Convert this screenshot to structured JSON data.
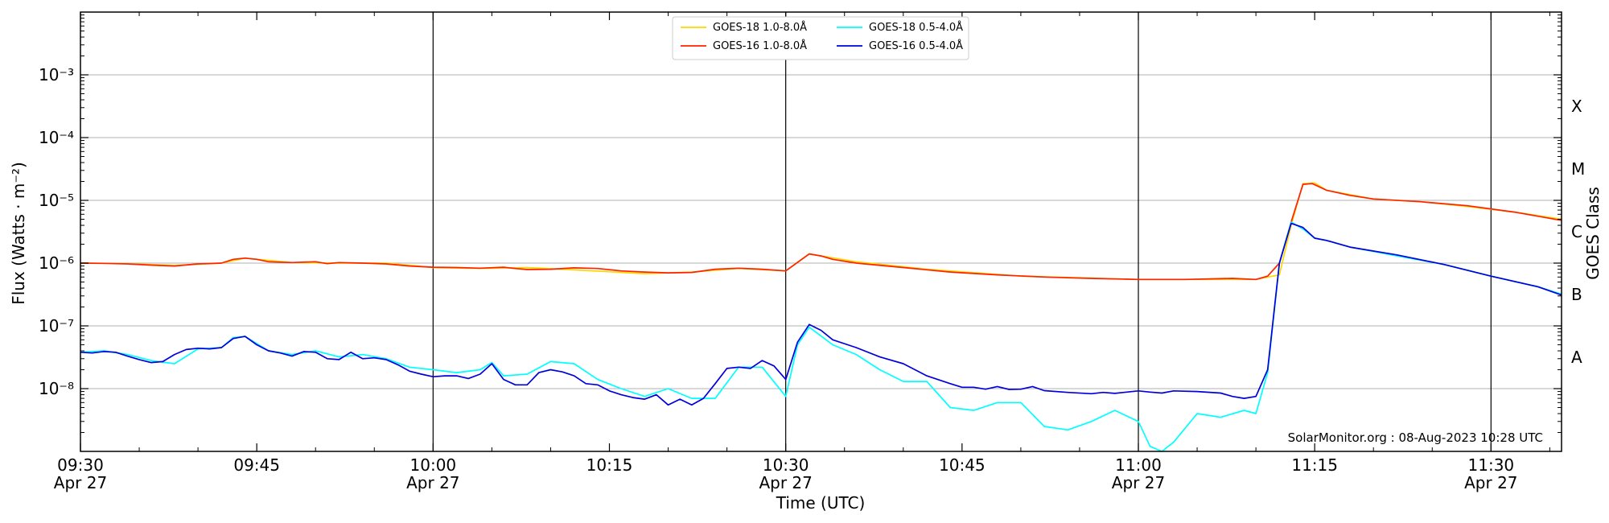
{
  "chart_data": {
    "type": "line",
    "xlabel": "Time (UTC)",
    "ylabel": "Flux (Watts · m⁻²)",
    "right_label": "GOES Class",
    "credit": "SolarMonitor.org : 08-Aug-2023 10:28 UTC",
    "y_scale": "log",
    "ylim_exp": [
      -9,
      -2
    ],
    "xlim_minutes": [
      0,
      126
    ],
    "x_ticks": [
      {
        "t": 0,
        "line1": "09:30",
        "line2": "Apr 27"
      },
      {
        "t": 15,
        "line1": "09:45",
        "line2": ""
      },
      {
        "t": 30,
        "line1": "10:00",
        "line2": "Apr 27"
      },
      {
        "t": 45,
        "line1": "10:15",
        "line2": ""
      },
      {
        "t": 60,
        "line1": "10:30",
        "line2": "Apr 27"
      },
      {
        "t": 75,
        "line1": "10:45",
        "line2": ""
      },
      {
        "t": 90,
        "line1": "11:00",
        "line2": "Apr 27"
      },
      {
        "t": 105,
        "line1": "11:15",
        "line2": ""
      },
      {
        "t": 120,
        "line1": "11:30",
        "line2": "Apr 27"
      }
    ],
    "vertical_lines": [
      30,
      60,
      90,
      120
    ],
    "y_ticks": [
      {
        "exp": -8,
        "label": "10⁻⁸"
      },
      {
        "exp": -7,
        "label": "10⁻⁷"
      },
      {
        "exp": -6,
        "label": "10⁻⁶"
      },
      {
        "exp": -5,
        "label": "10⁻⁵"
      },
      {
        "exp": -4,
        "label": "10⁻⁴"
      },
      {
        "exp": -3,
        "label": "10⁻³"
      }
    ],
    "goes_classes": [
      {
        "label": "A",
        "exp": -7.5
      },
      {
        "label": "B",
        "exp": -6.5
      },
      {
        "label": "C",
        "exp": -5.5
      },
      {
        "label": "M",
        "exp": -4.5
      },
      {
        "label": "X",
        "exp": -3.5
      }
    ],
    "legend": [
      {
        "name": "GOES-18 1.0-8.0Å",
        "color": "#ffd700"
      },
      {
        "name": "GOES-18 0.5-4.0Å",
        "color": "#00ffff"
      },
      {
        "name": "GOES-16 1.0-8.0Å",
        "color": "#ff2200"
      },
      {
        "name": "GOES-16 0.5-4.0Å",
        "color": "#0000dd"
      }
    ],
    "series": [
      {
        "name": "GOES-18 1.0-8.0Å",
        "color": "#ffd700",
        "points": [
          [
            0,
            1e-06
          ],
          [
            4,
            9.8e-07
          ],
          [
            8,
            9.2e-07
          ],
          [
            12,
            1e-06
          ],
          [
            14,
            1.2e-06
          ],
          [
            18,
            1.02e-06
          ],
          [
            22,
            1e-06
          ],
          [
            26,
            1e-06
          ],
          [
            30,
            8.5e-07
          ],
          [
            34,
            8.2e-07
          ],
          [
            38,
            8.5e-07
          ],
          [
            42,
            7.8e-07
          ],
          [
            48,
            6.8e-07
          ],
          [
            52,
            7.2e-07
          ],
          [
            56,
            8.2e-07
          ],
          [
            60,
            7.5e-07
          ],
          [
            62,
            1.4e-06
          ],
          [
            66,
            1.05e-06
          ],
          [
            72,
            8e-07
          ],
          [
            80,
            6.2e-07
          ],
          [
            90,
            5.5e-07
          ],
          [
            100,
            5.5e-07
          ],
          [
            102,
            6.5e-07
          ],
          [
            103,
            4e-06
          ],
          [
            104,
            1.85e-05
          ],
          [
            105,
            1.9e-05
          ],
          [
            106,
            1.45e-05
          ],
          [
            110,
            1.05e-05
          ],
          [
            114,
            9.5e-06
          ],
          [
            118,
            8e-06
          ],
          [
            122,
            6.5e-06
          ],
          [
            126,
            5e-06
          ]
        ]
      },
      {
        "name": "GOES-16 1.0-8.0Å",
        "color": "#ff2200",
        "points": [
          [
            0,
            1e-06
          ],
          [
            2,
            9.9e-07
          ],
          [
            4,
            9.7e-07
          ],
          [
            6,
            9.3e-07
          ],
          [
            8,
            9e-07
          ],
          [
            10,
            9.7e-07
          ],
          [
            12,
            1e-06
          ],
          [
            13,
            1.15e-06
          ],
          [
            14,
            1.2e-06
          ],
          [
            15,
            1.15e-06
          ],
          [
            16,
            1.05e-06
          ],
          [
            18,
            1.02e-06
          ],
          [
            20,
            1.05e-06
          ],
          [
            21,
            9.8e-07
          ],
          [
            22,
            1.02e-06
          ],
          [
            24,
            1e-06
          ],
          [
            26,
            9.7e-07
          ],
          [
            28,
            9e-07
          ],
          [
            30,
            8.6e-07
          ],
          [
            32,
            8.5e-07
          ],
          [
            34,
            8.3e-07
          ],
          [
            36,
            8.6e-07
          ],
          [
            37,
            8.2e-07
          ],
          [
            38,
            7.9e-07
          ],
          [
            40,
            8e-07
          ],
          [
            42,
            8.4e-07
          ],
          [
            44,
            8.2e-07
          ],
          [
            46,
            7.5e-07
          ],
          [
            48,
            7.2e-07
          ],
          [
            50,
            7e-07
          ],
          [
            52,
            7.1e-07
          ],
          [
            54,
            8e-07
          ],
          [
            56,
            8.3e-07
          ],
          [
            58,
            8e-07
          ],
          [
            60,
            7.5e-07
          ],
          [
            62,
            1.4e-06
          ],
          [
            63,
            1.3e-06
          ],
          [
            64,
            1.15e-06
          ],
          [
            66,
            1e-06
          ],
          [
            70,
            8.5e-07
          ],
          [
            74,
            7.2e-07
          ],
          [
            78,
            6.5e-07
          ],
          [
            82,
            6e-07
          ],
          [
            86,
            5.7e-07
          ],
          [
            90,
            5.5e-07
          ],
          [
            94,
            5.5e-07
          ],
          [
            98,
            5.7e-07
          ],
          [
            100,
            5.5e-07
          ],
          [
            101,
            6.2e-07
          ],
          [
            102,
            1e-06
          ],
          [
            103,
            4.5e-06
          ],
          [
            104,
            1.8e-05
          ],
          [
            104.8,
            1.85e-05
          ],
          [
            106,
            1.45e-05
          ],
          [
            108,
            1.2e-05
          ],
          [
            110,
            1.05e-05
          ],
          [
            114,
            9.5e-06
          ],
          [
            118,
            8.2e-06
          ],
          [
            122,
            6.5e-06
          ],
          [
            126,
            4.8e-06
          ]
        ]
      },
      {
        "name": "GOES-18 0.5-4.0Å",
        "color": "#00ffff",
        "points": [
          [
            0,
            3.8e-08
          ],
          [
            2,
            4e-08
          ],
          [
            4,
            3.5e-08
          ],
          [
            6,
            2.8e-08
          ],
          [
            8,
            2.5e-08
          ],
          [
            10,
            4.3e-08
          ],
          [
            12,
            4.5e-08
          ],
          [
            13,
            6.5e-08
          ],
          [
            14,
            6.8e-08
          ],
          [
            16,
            4e-08
          ],
          [
            18,
            3.5e-08
          ],
          [
            20,
            4e-08
          ],
          [
            22,
            3.2e-08
          ],
          [
            24,
            3.5e-08
          ],
          [
            26,
            3e-08
          ],
          [
            28,
            2.2e-08
          ],
          [
            30,
            2e-08
          ],
          [
            32,
            1.8e-08
          ],
          [
            34,
            2e-08
          ],
          [
            35,
            2.6e-08
          ],
          [
            36,
            1.6e-08
          ],
          [
            38,
            1.7e-08
          ],
          [
            40,
            2.7e-08
          ],
          [
            42,
            2.5e-08
          ],
          [
            44,
            1.4e-08
          ],
          [
            46,
            1e-08
          ],
          [
            48,
            7.5e-09
          ],
          [
            50,
            1e-08
          ],
          [
            52,
            7e-09
          ],
          [
            54,
            7e-09
          ],
          [
            56,
            2.2e-08
          ],
          [
            58,
            2.2e-08
          ],
          [
            60,
            7.5e-09
          ],
          [
            61,
            5e-08
          ],
          [
            62,
            9.5e-08
          ],
          [
            64,
            5e-08
          ],
          [
            66,
            3.5e-08
          ],
          [
            68,
            2e-08
          ],
          [
            70,
            1.3e-08
          ],
          [
            72,
            1.3e-08
          ],
          [
            74,
            5e-09
          ],
          [
            76,
            4.5e-09
          ],
          [
            78,
            6e-09
          ],
          [
            80,
            6e-09
          ],
          [
            82,
            2.5e-09
          ],
          [
            84,
            2.2e-09
          ],
          [
            86,
            3e-09
          ],
          [
            88,
            4.5e-09
          ],
          [
            90,
            3e-09
          ],
          [
            91,
            1.2e-09
          ],
          [
            92,
            1e-09
          ],
          [
            93,
            1.4e-09
          ],
          [
            95,
            4e-09
          ],
          [
            97,
            3.5e-09
          ],
          [
            99,
            4.5e-09
          ],
          [
            100,
            4e-09
          ],
          [
            101,
            1.8e-08
          ],
          [
            102,
            1e-06
          ],
          [
            103,
            4.5e-06
          ],
          [
            104,
            3.5e-06
          ],
          [
            105,
            2.5e-06
          ],
          [
            106,
            2.3e-06
          ],
          [
            108,
            1.8e-06
          ],
          [
            112,
            1.3e-06
          ],
          [
            116,
            9.5e-07
          ],
          [
            120,
            6.2e-07
          ],
          [
            124,
            4.2e-07
          ],
          [
            126,
            3.2e-07
          ]
        ]
      },
      {
        "name": "GOES-16 0.5-4.0Å",
        "color": "#0000dd",
        "points": [
          [
            0,
            3.8e-08
          ],
          [
            1,
            3.7e-08
          ],
          [
            2,
            3.9e-08
          ],
          [
            3,
            3.8e-08
          ],
          [
            4,
            3.3e-08
          ],
          [
            5,
            2.9e-08
          ],
          [
            6,
            2.6e-08
          ],
          [
            7,
            2.7e-08
          ],
          [
            8,
            3.5e-08
          ],
          [
            9,
            4.2e-08
          ],
          [
            10,
            4.4e-08
          ],
          [
            11,
            4.3e-08
          ],
          [
            12,
            4.5e-08
          ],
          [
            13,
            6.3e-08
          ],
          [
            14,
            6.8e-08
          ],
          [
            15,
            5e-08
          ],
          [
            16,
            4e-08
          ],
          [
            17,
            3.7e-08
          ],
          [
            18,
            3.3e-08
          ],
          [
            19,
            3.9e-08
          ],
          [
            20,
            3.8e-08
          ],
          [
            21,
            3e-08
          ],
          [
            22,
            2.9e-08
          ],
          [
            23,
            3.8e-08
          ],
          [
            24,
            3e-08
          ],
          [
            25,
            3.1e-08
          ],
          [
            26,
            2.9e-08
          ],
          [
            27,
            2.4e-08
          ],
          [
            28,
            1.9e-08
          ],
          [
            29,
            1.7e-08
          ],
          [
            30,
            1.55e-08
          ],
          [
            31,
            1.6e-08
          ],
          [
            32,
            1.6e-08
          ],
          [
            33,
            1.45e-08
          ],
          [
            34,
            1.7e-08
          ],
          [
            35,
            2.5e-08
          ],
          [
            36,
            1.4e-08
          ],
          [
            37,
            1.15e-08
          ],
          [
            38,
            1.15e-08
          ],
          [
            39,
            1.8e-08
          ],
          [
            40,
            2e-08
          ],
          [
            41,
            1.85e-08
          ],
          [
            42,
            1.6e-08
          ],
          [
            43,
            1.2e-08
          ],
          [
            44,
            1.15e-08
          ],
          [
            45,
            9.2e-09
          ],
          [
            46,
            8e-09
          ],
          [
            47,
            7.2e-09
          ],
          [
            48,
            6.8e-09
          ],
          [
            49,
            8e-09
          ],
          [
            50,
            5.5e-09
          ],
          [
            51,
            6.8e-09
          ],
          [
            52,
            5.5e-09
          ],
          [
            53,
            7e-09
          ],
          [
            54,
            1.2e-08
          ],
          [
            55,
            2.1e-08
          ],
          [
            56,
            2.2e-08
          ],
          [
            57,
            2.1e-08
          ],
          [
            58,
            2.8e-08
          ],
          [
            59,
            2.3e-08
          ],
          [
            60,
            1.4e-08
          ],
          [
            61,
            5.5e-08
          ],
          [
            62,
            1.05e-07
          ],
          [
            63,
            8.5e-08
          ],
          [
            64,
            6e-08
          ],
          [
            66,
            4.5e-08
          ],
          [
            68,
            3.2e-08
          ],
          [
            70,
            2.5e-08
          ],
          [
            72,
            1.6e-08
          ],
          [
            74,
            1.2e-08
          ],
          [
            75,
            1.05e-08
          ],
          [
            76,
            1.05e-08
          ],
          [
            77,
            9.8e-09
          ],
          [
            78,
            1.08e-08
          ],
          [
            79,
            9.7e-09
          ],
          [
            80,
            9.8e-09
          ],
          [
            81,
            1.08e-08
          ],
          [
            82,
            9.3e-09
          ],
          [
            84,
            8.7e-09
          ],
          [
            86,
            8.3e-09
          ],
          [
            87,
            8.7e-09
          ],
          [
            88,
            8.4e-09
          ],
          [
            89,
            8.8e-09
          ],
          [
            90,
            9.2e-09
          ],
          [
            91,
            8.8e-09
          ],
          [
            92,
            8.5e-09
          ],
          [
            93,
            9.2e-09
          ],
          [
            95,
            9e-09
          ],
          [
            97,
            8.5e-09
          ],
          [
            98,
            7.5e-09
          ],
          [
            99,
            7e-09
          ],
          [
            100,
            7.5e-09
          ],
          [
            101,
            2e-08
          ],
          [
            102,
            1e-06
          ],
          [
            103,
            4.3e-06
          ],
          [
            104,
            3.7e-06
          ],
          [
            105,
            2.5e-06
          ],
          [
            106,
            2.3e-06
          ],
          [
            108,
            1.8e-06
          ],
          [
            112,
            1.35e-06
          ],
          [
            116,
            9.5e-07
          ],
          [
            120,
            6.2e-07
          ],
          [
            124,
            4.2e-07
          ],
          [
            126,
            3.1e-07
          ]
        ]
      }
    ]
  }
}
